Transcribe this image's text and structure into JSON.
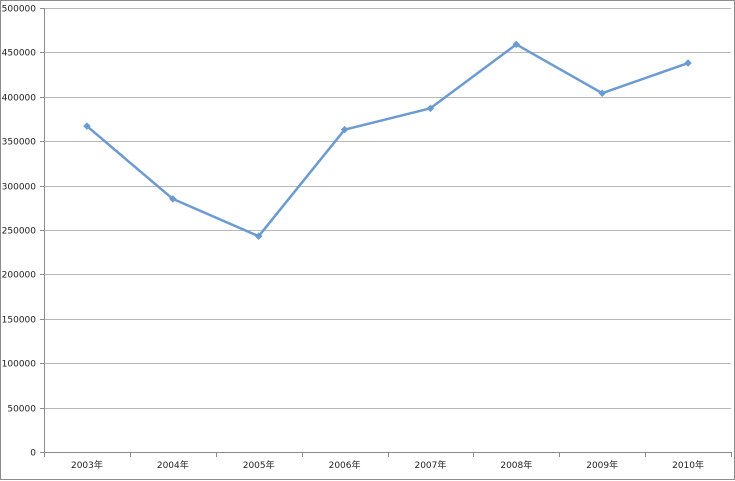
{
  "chart_data": {
    "type": "line",
    "title": "",
    "xlabel": "",
    "ylabel": "",
    "categories": [
      "2003年",
      "2004年",
      "2005年",
      "2006年",
      "2007年",
      "2008年",
      "2009年",
      "2010年"
    ],
    "series": [
      {
        "values": [
          367000,
          285000,
          243000,
          363000,
          387000,
          459000,
          404000,
          438000
        ],
        "color": "#6b9bd1",
        "marker": "diamond"
      }
    ],
    "ylim": [
      0,
      500000
    ],
    "yticks": [
      0,
      50000,
      100000,
      150000,
      200000,
      250000,
      300000,
      350000,
      400000,
      450000,
      500000
    ],
    "ytick_labels": [
      "0",
      "50000",
      "100000",
      "150000",
      "200000",
      "250000",
      "300000",
      "350000",
      "400000",
      "450000",
      "500000"
    ],
    "grid": true,
    "legend": "none"
  }
}
